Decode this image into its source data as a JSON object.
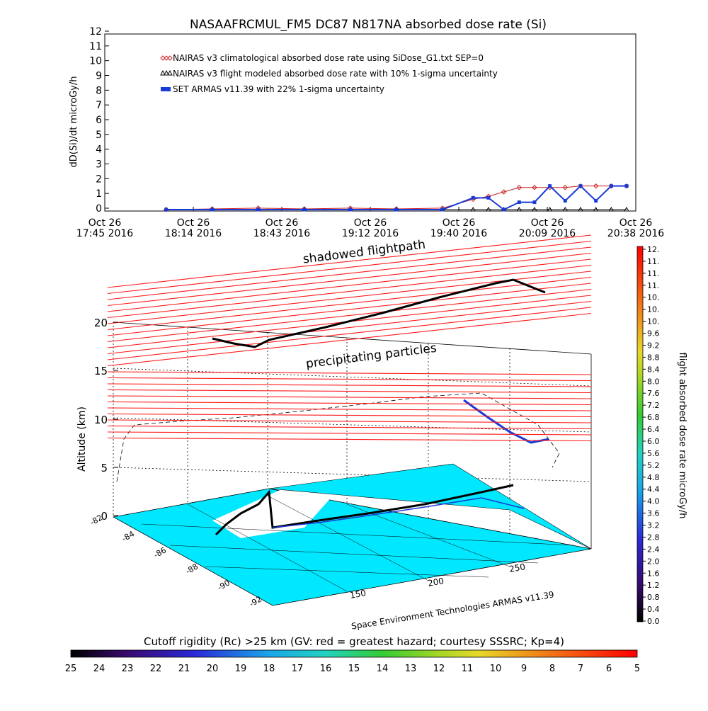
{
  "title": "NASAAFRCMUL_FM5 DC87 N817NA absorbed dose rate (Si)",
  "credit": "Space Environment Technologies ARMAS v11.39",
  "top_panel": {
    "ylabel": "dD(Si)/dt microGy/h",
    "y_ticks": [
      "0",
      "1",
      "2",
      "3",
      "4",
      "5",
      "6",
      "7",
      "8",
      "9",
      "10",
      "11",
      "12"
    ],
    "x_ticks": [
      {
        "line1": "Oct 26",
        "line2": "17:45 2016"
      },
      {
        "line1": "Oct 26",
        "line2": "18:14 2016"
      },
      {
        "line1": "Oct 26",
        "line2": "18:43 2016"
      },
      {
        "line1": "Oct 26",
        "line2": "19:12 2016"
      },
      {
        "line1": "Oct 26",
        "line2": "19:40 2016"
      },
      {
        "line1": "Oct 26",
        "line2": "20:09 2016"
      },
      {
        "line1": "Oct 26",
        "line2": "20:38 2016"
      }
    ],
    "legend": [
      {
        "label": "NAIRAS v3 climatological absorbed dose rate using SiDose_G1.txt SEP=0",
        "color": "#cc2222",
        "marker": "diamond"
      },
      {
        "label": "NAIRAS v3 flight modeled absorbed dose rate with 10% 1-sigma uncertainty",
        "color": "#000000",
        "marker": "triangle"
      },
      {
        "label": "SET ARMAS v11.39 with 22% 1-sigma uncertainty",
        "color": "#1a3ad6",
        "marker": "square"
      }
    ]
  },
  "map_panel": {
    "zlabel": "Altitude (km)",
    "z_ticks": [
      "0",
      "5",
      "10",
      "15",
      "20"
    ],
    "lat_ticks": [
      "-82",
      "-84",
      "-86",
      "-88",
      "-90",
      "-92"
    ],
    "lon_ticks": [
      "150",
      "200",
      "250"
    ],
    "label_shadowed": "shadowed flightpath",
    "label_precip": "precipitating particles"
  },
  "right_colorbar": {
    "label": "flight absorbed dose rate microGy/h",
    "ticks": [
      "12.",
      "11.",
      "11.",
      "11.",
      "10.",
      "10.",
      "10.",
      "9.6",
      "9.2",
      "8.8",
      "8.4",
      "8.0",
      "7.6",
      "7.2",
      "6.8",
      "6.4",
      "6.0",
      "5.6",
      "5.2",
      "4.8",
      "4.4",
      "4.0",
      "3.6",
      "3.2",
      "2.8",
      "2.4",
      "2.0",
      "1.6",
      "1.2",
      "0.8",
      "0.4",
      "0.0"
    ]
  },
  "bottom_colorbar": {
    "label": "Cutoff rigidity (Rc) >25 km (GV: red = greatest hazard; courtesy SSSRC; Kp=4)",
    "ticks": [
      "25",
      "24",
      "23",
      "22",
      "21",
      "20",
      "19",
      "18",
      "17",
      "16",
      "15",
      "14",
      "13",
      "12",
      "11",
      "10",
      "9",
      "8",
      "7",
      "6",
      "5"
    ]
  },
  "chart_data": {
    "type": "line",
    "xlabel": "",
    "ylabel": "dD(Si)/dt microGy/h",
    "ylim": [
      0,
      12
    ],
    "xlim": [
      "Oct 26 17:45 2016",
      "Oct 26 20:38 2016"
    ],
    "grid": false,
    "legend_position": "top-left",
    "x": [
      "18:05",
      "18:20",
      "18:35",
      "18:50",
      "19:05",
      "19:20",
      "19:35",
      "19:45",
      "19:50",
      "19:55",
      "20:00",
      "20:05",
      "20:10",
      "20:15",
      "20:20",
      "20:25",
      "20:30",
      "20:35"
    ],
    "series": [
      {
        "name": "NAIRAS v3 climatological absorbed dose rate using SiDose_G1.txt SEP=0",
        "values": [
          0.0,
          0.05,
          0.1,
          0.05,
          0.1,
          0.05,
          0.1,
          0.7,
          0.9,
          1.2,
          1.5,
          1.5,
          1.5,
          1.5,
          1.6,
          1.6,
          1.6,
          1.6
        ]
      },
      {
        "name": "NAIRAS v3 flight modeled absorbed dose rate with 10% 1-sigma uncertainty",
        "values": [
          0.0,
          0.0,
          0.0,
          0.0,
          0.0,
          0.0,
          0.0,
          0.0,
          0.0,
          0.0,
          0.0,
          0.0,
          0.0,
          0.0,
          0.0,
          0.0,
          0.0,
          0.0
        ]
      },
      {
        "name": "SET ARMAS v11.39 with 22% 1-sigma uncertainty",
        "values": [
          0.0,
          0.0,
          0.0,
          0.0,
          0.0,
          0.0,
          0.0,
          0.8,
          0.8,
          0.0,
          0.5,
          0.5,
          1.6,
          0.6,
          1.6,
          0.6,
          1.6,
          1.6
        ]
      }
    ]
  }
}
